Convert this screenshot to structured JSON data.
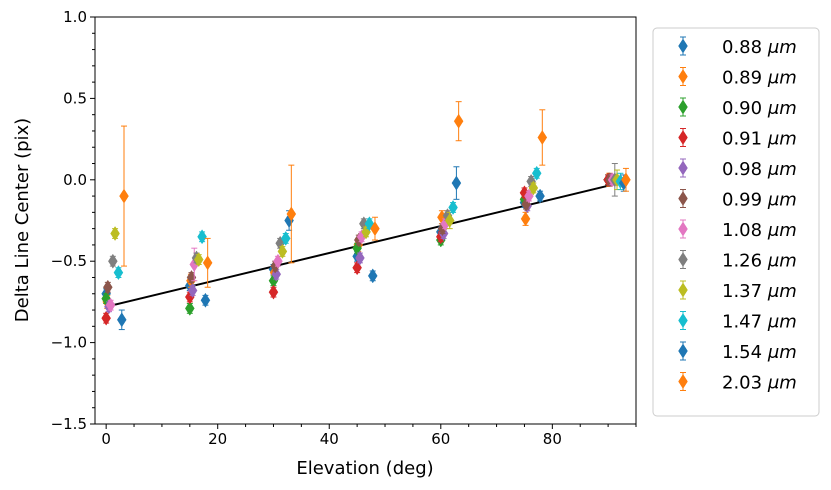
{
  "chart_data": {
    "type": "scatter",
    "xlabel": "Elevation (deg)",
    "ylabel": "Delta Line Center (pix)",
    "xlim": [
      -2,
      95
    ],
    "ylim": [
      -1.5,
      1.0
    ],
    "x_ticks": [
      0,
      20,
      40,
      60,
      80
    ],
    "y_ticks": [
      -1.5,
      -1.0,
      -0.5,
      0.0,
      0.5,
      1.0
    ],
    "x_tick_labels": [
      "0",
      "20",
      "40",
      "60",
      "80"
    ],
    "y_tick_labels": [
      "−1.5",
      "−1.0",
      "−0.5",
      "0.0",
      "0.5",
      "1.0"
    ],
    "legend_position": "outside right",
    "marker": "thin diamond with error bars",
    "fit_line": {
      "x": [
        0,
        92
      ],
      "y": [
        -0.78,
        -0.02
      ],
      "color": "#000000"
    },
    "series": [
      {
        "name": "0.88",
        "unit": "μm",
        "color": "#1f77b4",
        "points": [
          {
            "x": 0,
            "y": -0.7,
            "err": 0.03
          },
          {
            "x": 15,
            "y": -0.65,
            "err": 0.03
          },
          {
            "x": 30,
            "y": -0.55,
            "err": 0.03
          },
          {
            "x": 45,
            "y": -0.47,
            "err": 0.03
          },
          {
            "x": 60,
            "y": -0.32,
            "err": 0.03
          },
          {
            "x": 75,
            "y": -0.14,
            "err": 0.03
          },
          {
            "x": 90,
            "y": 0.0,
            "err": 0.03
          }
        ]
      },
      {
        "name": "0.89",
        "unit": "μm",
        "color": "#ff7f0e",
        "points": [
          {
            "x": 0.2,
            "y": -0.75,
            "err": 0.04
          },
          {
            "x": 15.2,
            "y": -0.62,
            "err": 0.04
          },
          {
            "x": 30.2,
            "y": -0.57,
            "err": 0.04
          },
          {
            "x": 45.2,
            "y": -0.4,
            "err": 0.04
          },
          {
            "x": 60.2,
            "y": -0.23,
            "err": 0.04
          },
          {
            "x": 75.2,
            "y": -0.24,
            "err": 0.04
          },
          {
            "x": 90.2,
            "y": 0.0,
            "err": 0.04
          }
        ]
      },
      {
        "name": "0.90",
        "unit": "μm",
        "color": "#2ca02c",
        "points": [
          {
            "x": 0,
            "y": -0.73,
            "err": 0.03
          },
          {
            "x": 15,
            "y": -0.79,
            "err": 0.03
          },
          {
            "x": 30,
            "y": -0.62,
            "err": 0.03
          },
          {
            "x": 45,
            "y": -0.42,
            "err": 0.03
          },
          {
            "x": 60,
            "y": -0.37,
            "err": 0.03
          },
          {
            "x": 75,
            "y": -0.12,
            "err": 0.03
          },
          {
            "x": 90,
            "y": 0.0,
            "err": 0.03
          }
        ]
      },
      {
        "name": "0.91",
        "unit": "μm",
        "color": "#d62728",
        "points": [
          {
            "x": 0,
            "y": -0.85,
            "err": 0.03
          },
          {
            "x": 15,
            "y": -0.72,
            "err": 0.03
          },
          {
            "x": 30,
            "y": -0.69,
            "err": 0.03
          },
          {
            "x": 45,
            "y": -0.54,
            "err": 0.03
          },
          {
            "x": 60,
            "y": -0.35,
            "err": 0.03
          },
          {
            "x": 75,
            "y": -0.08,
            "err": 0.03
          },
          {
            "x": 90,
            "y": 0.0,
            "err": 0.03
          }
        ]
      },
      {
        "name": "0.98",
        "unit": "μm",
        "color": "#9467bd",
        "points": [
          {
            "x": 0.5,
            "y": -0.78,
            "err": 0.03
          },
          {
            "x": 15.5,
            "y": -0.68,
            "err": 0.03
          },
          {
            "x": 30.5,
            "y": -0.58,
            "err": 0.03
          },
          {
            "x": 45.5,
            "y": -0.48,
            "err": 0.03
          },
          {
            "x": 60.5,
            "y": -0.33,
            "err": 0.03
          },
          {
            "x": 75.5,
            "y": -0.16,
            "err": 0.03
          },
          {
            "x": 90.5,
            "y": 0.0,
            "err": 0.03
          }
        ]
      },
      {
        "name": "0.99",
        "unit": "μm",
        "color": "#8c564b",
        "points": [
          {
            "x": 0.3,
            "y": -0.66,
            "err": 0.03
          },
          {
            "x": 15.3,
            "y": -0.6,
            "err": 0.03
          },
          {
            "x": 30.3,
            "y": -0.53,
            "err": 0.03
          },
          {
            "x": 45.3,
            "y": -0.37,
            "err": 0.03
          },
          {
            "x": 60.3,
            "y": -0.3,
            "err": 0.03
          },
          {
            "x": 75.3,
            "y": -0.15,
            "err": 0.03
          },
          {
            "x": 90.3,
            "y": 0.0,
            "err": 0.03
          }
        ]
      },
      {
        "name": "1.08",
        "unit": "μm",
        "color": "#e377c2",
        "points": [
          {
            "x": 0.8,
            "y": -0.77,
            "err": 0.03
          },
          {
            "x": 15.8,
            "y": -0.52,
            "err": 0.1
          },
          {
            "x": 30.8,
            "y": -0.5,
            "err": 0.03
          },
          {
            "x": 45.8,
            "y": -0.35,
            "err": 0.03
          },
          {
            "x": 60.8,
            "y": -0.27,
            "err": 0.03
          },
          {
            "x": 75.8,
            "y": -0.1,
            "err": 0.03
          },
          {
            "x": 90.8,
            "y": 0.0,
            "err": 0.03
          }
        ]
      },
      {
        "name": "1.26",
        "unit": "μm",
        "color": "#7f7f7f",
        "points": [
          {
            "x": 1.2,
            "y": -0.5,
            "err": 0.03
          },
          {
            "x": 16.2,
            "y": -0.48,
            "err": 0.03
          },
          {
            "x": 31.2,
            "y": -0.39,
            "err": 0.03
          },
          {
            "x": 46.2,
            "y": -0.27,
            "err": 0.03
          },
          {
            "x": 61.2,
            "y": -0.22,
            "err": 0.03
          },
          {
            "x": 76.2,
            "y": -0.01,
            "err": 0.03
          },
          {
            "x": 91.2,
            "y": 0.0,
            "err": 0.1
          }
        ]
      },
      {
        "name": "1.37",
        "unit": "μm",
        "color": "#bcbd22",
        "points": [
          {
            "x": 1.6,
            "y": -0.33,
            "err": 0.03
          },
          {
            "x": 16.6,
            "y": -0.49,
            "err": 0.03
          },
          {
            "x": 31.6,
            "y": -0.44,
            "err": 0.03
          },
          {
            "x": 46.6,
            "y": -0.32,
            "err": 0.03
          },
          {
            "x": 61.6,
            "y": -0.25,
            "err": 0.05
          },
          {
            "x": 76.6,
            "y": -0.05,
            "err": 0.03
          },
          {
            "x": 91.6,
            "y": 0.0,
            "err": 0.06
          }
        ]
      },
      {
        "name": "1.47",
        "unit": "μm",
        "color": "#17becf",
        "points": [
          {
            "x": 2.2,
            "y": -0.57,
            "err": 0.03
          },
          {
            "x": 17.2,
            "y": -0.35,
            "err": 0.03
          },
          {
            "x": 32.2,
            "y": -0.36,
            "err": 0.03
          },
          {
            "x": 47.2,
            "y": -0.27,
            "err": 0.03
          },
          {
            "x": 62.2,
            "y": -0.17,
            "err": 0.03
          },
          {
            "x": 77.2,
            "y": 0.04,
            "err": 0.03
          },
          {
            "x": 92.2,
            "y": -0.01,
            "err": 0.05
          }
        ]
      },
      {
        "name": "1.54",
        "unit": "μm",
        "color": "#1f77b4",
        "points": [
          {
            "x": 2.8,
            "y": -0.86,
            "err": 0.06
          },
          {
            "x": 17.8,
            "y": -0.74,
            "err": 0.03
          },
          {
            "x": 32.8,
            "y": -0.25,
            "err": 0.06
          },
          {
            "x": 47.8,
            "y": -0.59,
            "err": 0.03
          },
          {
            "x": 62.8,
            "y": -0.02,
            "err": 0.1
          },
          {
            "x": 77.8,
            "y": -0.1,
            "err": 0.03
          },
          {
            "x": 92.8,
            "y": -0.02,
            "err": 0.05
          }
        ]
      },
      {
        "name": "2.03",
        "unit": "μm",
        "color": "#ff7f0e",
        "points": [
          {
            "x": 3.2,
            "y": -0.1,
            "err": 0.43
          },
          {
            "x": 18.2,
            "y": -0.51,
            "err": 0.15
          },
          {
            "x": 33.2,
            "y": -0.21,
            "err": 0.3
          },
          {
            "x": 48.2,
            "y": -0.3,
            "err": 0.07
          },
          {
            "x": 63.2,
            "y": 0.36,
            "err": 0.12
          },
          {
            "x": 78.2,
            "y": 0.26,
            "err": 0.17
          },
          {
            "x": 93.2,
            "y": 0.0,
            "err": 0.07
          }
        ]
      }
    ]
  }
}
